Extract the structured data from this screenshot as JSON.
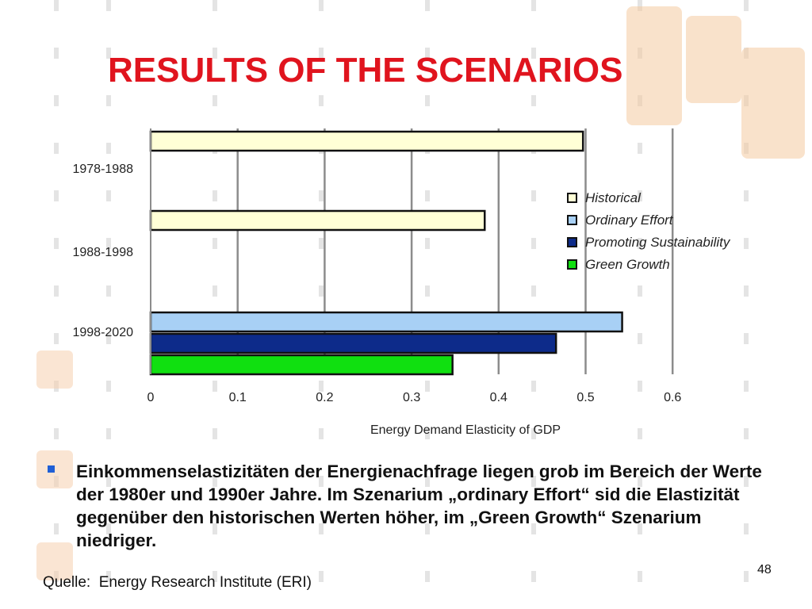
{
  "slide": {
    "title": "RESULTS OF THE SCENARIOS",
    "bullet": "Einkommenselastizitäten der Energienachfrage liegen grob im Bereich der Werte der 1980er und 1990er Jahre. Im Szenarium „ordinary Effort“ sid die Elastizität gegenüber den historischen Werten höher, im „Green Growth“ Szenarium niedriger.",
    "source": "Quelle:  Energy Research Institute (ERI)",
    "page_number": "48",
    "accent_color": "#e0141e",
    "bullet_color": "#1f5fd6"
  },
  "chart_data": {
    "type": "bar",
    "orientation": "horizontal",
    "title": "",
    "xlabel": "Energy Demand Elasticity of GDP",
    "ylabel": "",
    "xlim": [
      0,
      0.6
    ],
    "xticks": [
      "0",
      "0.1",
      "0.2",
      "0.3",
      "0.4",
      "0.5",
      "0.6"
    ],
    "grid": true,
    "legend_position": "right",
    "categories": [
      "1978-1988",
      "1988-1998",
      "1998-2020"
    ],
    "series": [
      {
        "name": "Historical",
        "color": "#ffffd6",
        "values": [
          0.497,
          0.384,
          null
        ]
      },
      {
        "name": "Ordinary Effort",
        "color": "#a8d0f5",
        "values": [
          null,
          null,
          0.542
        ]
      },
      {
        "name": "Promoting Sustainability",
        "color": "#0d2b8a",
        "values": [
          null,
          null,
          0.466
        ]
      },
      {
        "name": "Green Growth",
        "color": "#10e010",
        "values": [
          null,
          null,
          0.347
        ]
      }
    ]
  }
}
